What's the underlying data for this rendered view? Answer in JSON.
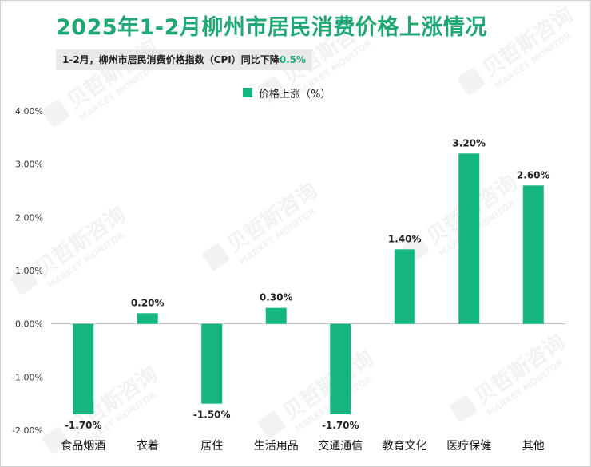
{
  "header": {
    "title": "2025年1-2月柳州市居民消费价格上涨情况",
    "subtitle_main": "1-2月，柳州市居民消费价格指数（CPI）同比下降",
    "subtitle_highlight": "0.5%"
  },
  "colors": {
    "accent": "#1fa873",
    "bar": "#15b582",
    "subtitle_bg": "#e9e9e9"
  },
  "chart_data": {
    "type": "bar",
    "title": "2025年1-2月柳州市居民消费价格上涨情况",
    "legend": "价格上涨（%）",
    "legend_position": "top-center",
    "categories": [
      "食品烟酒",
      "衣着",
      "居住",
      "生活用品",
      "交通通信",
      "教育文化",
      "医疗保健",
      "其他"
    ],
    "values": [
      -1.7,
      0.2,
      -1.5,
      0.3,
      -1.7,
      1.4,
      3.2,
      2.6
    ],
    "data_labels": [
      "-1.70%",
      "0.20%",
      "-1.50%",
      "0.30%",
      "-1.70%",
      "1.40%",
      "3.20%",
      "2.60%"
    ],
    "y_ticks": [
      4,
      3,
      2,
      1,
      0,
      -1,
      -2
    ],
    "y_tick_labels": [
      "4.00%",
      "3.00%",
      "2.00%",
      "1.00%",
      "0.00%",
      "-1.00%",
      "-2.00%"
    ],
    "ylim": [
      -2,
      4
    ],
    "xlabel": "",
    "ylabel": "",
    "grid": false
  }
}
